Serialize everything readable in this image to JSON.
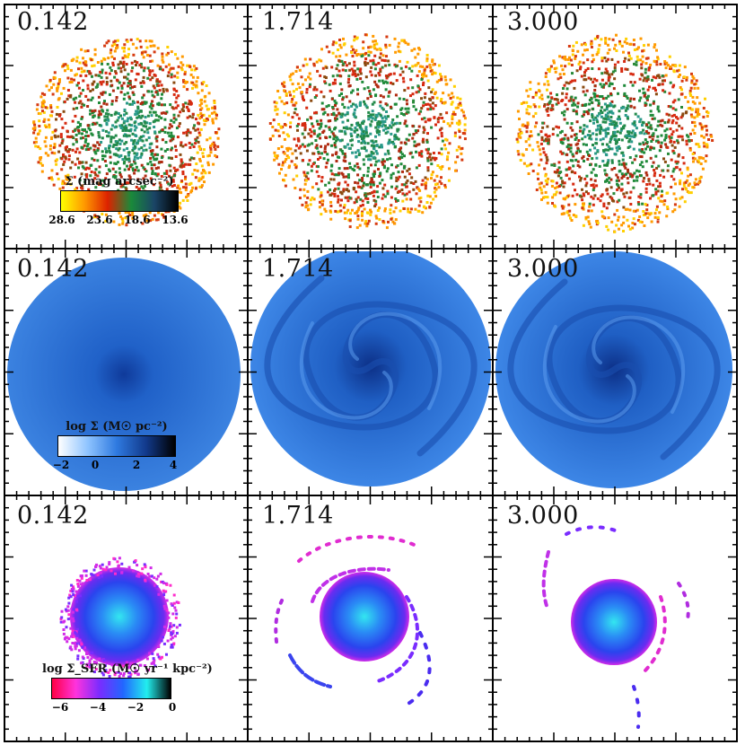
{
  "times": [
    "0.142",
    "1.714",
    "3.000"
  ],
  "rows": [
    {
      "name": "stellar-surface-brightness",
      "legend": {
        "label": "Σ (mag arcsec⁻²)",
        "ticks": [
          "28.6",
          "23.6",
          "18.6",
          "13.6"
        ],
        "colors": [
          "#ffff00",
          "#ff9900",
          "#dd2200",
          "#1a8a3a",
          "#1a4466",
          "#000000"
        ]
      }
    },
    {
      "name": "gas-surface-density",
      "legend": {
        "label": "log Σ (M☉ pc⁻²)",
        "ticks": [
          "−2",
          "0",
          "2",
          "4"
        ],
        "colors": [
          "#ffffff",
          "#8fc4ff",
          "#2f7ae0",
          "#123a8c",
          "#000000"
        ]
      }
    },
    {
      "name": "star-formation-rate-density",
      "legend": {
        "label": "log Σ_SFR (M☉ yr⁻¹ kpc⁻²)",
        "ticks": [
          "−6",
          "−4",
          "−2",
          "0"
        ],
        "colors": [
          "#ff0044",
          "#ff33dd",
          "#7a2cff",
          "#2266ff",
          "#22eeee",
          "#000000"
        ]
      }
    }
  ]
}
